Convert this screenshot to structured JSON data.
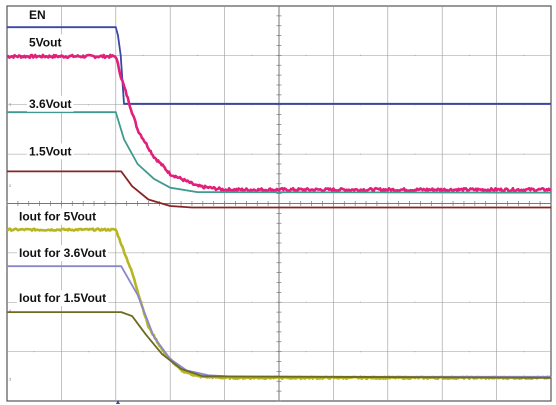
{
  "chart_data": {
    "type": "line",
    "title": "",
    "xlabel": "",
    "ylabel": "",
    "grid": true,
    "grid_divisions": {
      "x": 10,
      "y": 8
    },
    "x_unit": "divisions",
    "y_unit": "divisions",
    "xlim": [
      0,
      10
    ],
    "ylim": [
      0,
      8
    ],
    "series": [
      {
        "name": "EN",
        "color": "#3a46a8",
        "x": [
          0,
          2.0,
          2.04,
          2.09,
          2.15,
          10
        ],
        "y": [
          7.57,
          7.57,
          7.4,
          7.0,
          6.02,
          6.02
        ]
      },
      {
        "name": "5Vout",
        "color": "#e0207a",
        "x": [
          0,
          2.0,
          2.1,
          2.4,
          2.7,
          3.0,
          3.5,
          4.0,
          10
        ],
        "y": [
          6.98,
          6.98,
          6.55,
          5.5,
          4.95,
          4.6,
          4.35,
          4.28,
          4.28
        ]
      },
      {
        "name": "3.6Vout",
        "color": "#3f9a90",
        "x": [
          0,
          2.0,
          2.15,
          2.4,
          2.7,
          3.0,
          3.5,
          10
        ],
        "y": [
          5.85,
          5.85,
          5.3,
          4.8,
          4.5,
          4.32,
          4.23,
          4.22
        ]
      },
      {
        "name": "1.5Vout",
        "color": "#8a2424",
        "x": [
          0,
          2.1,
          2.3,
          2.6,
          3.0,
          3.4,
          10
        ],
        "y": [
          4.65,
          4.65,
          4.35,
          4.08,
          3.95,
          3.92,
          3.92
        ]
      },
      {
        "name": "Iout for 5Vout",
        "color": "#b8b522",
        "x": [
          0,
          2.0,
          2.3,
          2.6,
          2.9,
          3.2,
          3.5,
          4.0,
          10
        ],
        "y": [
          3.47,
          3.47,
          2.6,
          1.5,
          0.95,
          0.62,
          0.5,
          0.47,
          0.47
        ]
      },
      {
        "name": "Iout for 3.6Vout",
        "color": "#8a88cc",
        "x": [
          0,
          2.1,
          2.4,
          2.7,
          3.0,
          3.3,
          3.7,
          4.2,
          10
        ],
        "y": [
          2.73,
          2.73,
          2.15,
          1.3,
          0.85,
          0.62,
          0.52,
          0.49,
          0.49
        ]
      },
      {
        "name": "Iout for 1.5Vout",
        "color": "#6e6a20",
        "x": [
          0,
          2.1,
          2.3,
          2.55,
          2.85,
          3.2,
          3.6,
          10
        ],
        "y": [
          1.8,
          1.8,
          1.72,
          1.35,
          0.95,
          0.65,
          0.5,
          0.47
        ]
      }
    ],
    "noise": {
      "5Vout": 0.06,
      "Iout for 5Vout": 0.04
    },
    "channel_markers": [
      "1",
      "2",
      "4",
      "3"
    ]
  }
}
